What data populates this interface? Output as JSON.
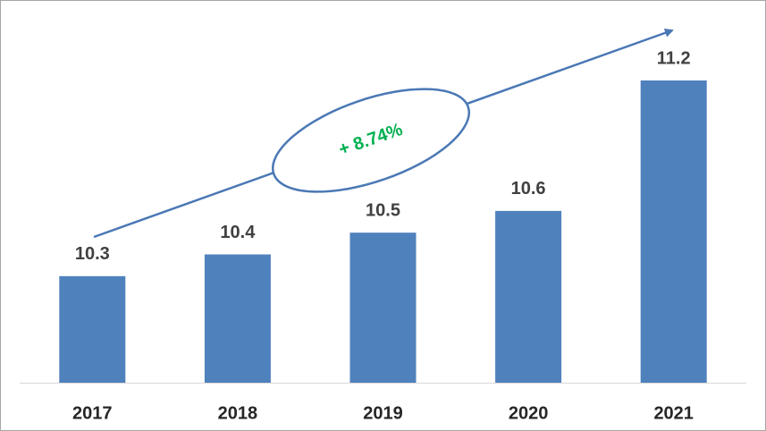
{
  "chart_data": {
    "type": "bar",
    "categories": [
      "2017",
      "2018",
      "2019",
      "2020",
      "2021"
    ],
    "values": [
      10.3,
      10.4,
      10.5,
      10.6,
      11.2
    ],
    "color": "#4f81bd",
    "ylim": [
      9.81,
      11.57
    ],
    "annotation": "+ 8.74%"
  }
}
